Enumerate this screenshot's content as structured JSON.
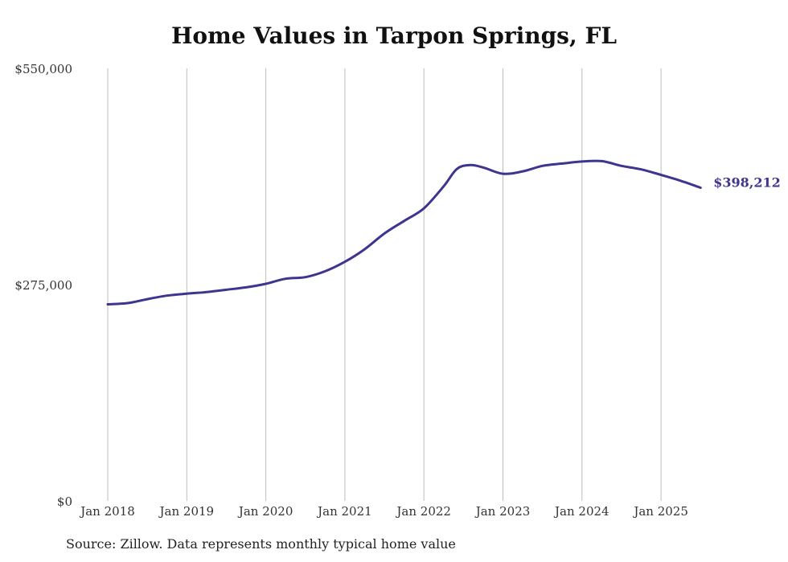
{
  "chart_data": {
    "type": "line",
    "title": "Home Values in Tarpon Springs, FL",
    "source_note": "Source: Zillow. Data represents monthly typical home value",
    "xlabel": "",
    "ylabel": "",
    "x_ticks": [
      "Jan 2018",
      "Jan 2019",
      "Jan 2020",
      "Jan 2021",
      "Jan 2022",
      "Jan 2023",
      "Jan 2024",
      "Jan 2025"
    ],
    "y_ticks": [
      "$0",
      "$275,000",
      "$550,000"
    ],
    "ylim": [
      0,
      550000
    ],
    "xlim": [
      "Jan 2018",
      "Jul 2025"
    ],
    "grid": "vertical",
    "series_color": "#3d3590",
    "series": [
      {
        "name": "",
        "end_label": "$398,212",
        "points": [
          {
            "x": "Jan 2018",
            "y": 250000
          },
          {
            "x": "Apr 2018",
            "y": 251500
          },
          {
            "x": "Jul 2018",
            "y": 256500
          },
          {
            "x": "Oct 2018",
            "y": 261000
          },
          {
            "x": "Jan 2019",
            "y": 263500
          },
          {
            "x": "Apr 2019",
            "y": 265500
          },
          {
            "x": "Jul 2019",
            "y": 268500
          },
          {
            "x": "Oct 2019",
            "y": 271500
          },
          {
            "x": "Jan 2020",
            "y": 276000
          },
          {
            "x": "Apr 2020",
            "y": 282500
          },
          {
            "x": "Jul 2020",
            "y": 284500
          },
          {
            "x": "Oct 2020",
            "y": 292000
          },
          {
            "x": "Jan 2021",
            "y": 304000
          },
          {
            "x": "Apr 2021",
            "y": 320000
          },
          {
            "x": "Jul 2021",
            "y": 340000
          },
          {
            "x": "Oct 2021",
            "y": 356000
          },
          {
            "x": "Jan 2022",
            "y": 372000
          },
          {
            "x": "Apr 2022",
            "y": 400000
          },
          {
            "x": "Jun 2022",
            "y": 422000
          },
          {
            "x": "Aug 2022",
            "y": 427000
          },
          {
            "x": "Oct 2022",
            "y": 424000
          },
          {
            "x": "Jan 2023",
            "y": 416000
          },
          {
            "x": "Apr 2023",
            "y": 419000
          },
          {
            "x": "Jul 2023",
            "y": 426000
          },
          {
            "x": "Oct 2023",
            "y": 429000
          },
          {
            "x": "Jan 2024",
            "y": 431500
          },
          {
            "x": "Apr 2024",
            "y": 432000
          },
          {
            "x": "Jul 2024",
            "y": 426000
          },
          {
            "x": "Oct 2024",
            "y": 421500
          },
          {
            "x": "Jan 2025",
            "y": 414500
          },
          {
            "x": "Apr 2025",
            "y": 407000
          },
          {
            "x": "Jul 2025",
            "y": 398212
          }
        ]
      }
    ]
  }
}
